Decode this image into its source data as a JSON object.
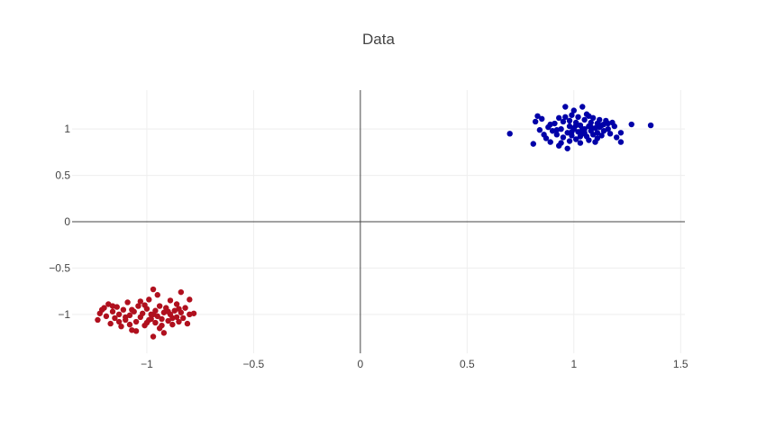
{
  "chart_data": {
    "type": "scatter",
    "title": "Data",
    "xlabel": "",
    "ylabel": "",
    "xlim": [
      -1.35,
      1.52
    ],
    "ylim": [
      -1.42,
      1.42
    ],
    "x_ticks": [
      -1,
      -0.5,
      0,
      0.5,
      1,
      1.5
    ],
    "x_tick_labels": [
      "−1",
      "−0.5",
      "0",
      "0.5",
      "1",
      "1.5"
    ],
    "y_ticks": [
      -1,
      -0.5,
      0,
      0.5,
      1
    ],
    "y_tick_labels": [
      "−1",
      "−0.5",
      "0",
      "0.5",
      "1"
    ],
    "grid": true,
    "zero_lines": true,
    "legend": "none",
    "series": [
      {
        "color": "#0000a8",
        "points": [
          [
            0.7,
            0.95
          ],
          [
            0.81,
            0.84
          ],
          [
            0.82,
            1.08
          ],
          [
            0.83,
            1.14
          ],
          [
            0.85,
            1.11
          ],
          [
            0.84,
            0.99
          ],
          [
            0.86,
            0.94
          ],
          [
            0.88,
            1.02
          ],
          [
            0.87,
            0.9
          ],
          [
            0.89,
            0.86
          ],
          [
            0.9,
            0.98
          ],
          [
            0.91,
            1.06
          ],
          [
            0.92,
            0.94
          ],
          [
            0.93,
            1.12
          ],
          [
            0.93,
            0.82
          ],
          [
            0.94,
            1.0
          ],
          [
            0.95,
            0.91
          ],
          [
            0.95,
            1.08
          ],
          [
            0.96,
            1.24
          ],
          [
            0.97,
            0.96
          ],
          [
            0.98,
            1.03
          ],
          [
            0.98,
            0.87
          ],
          [
            0.99,
            1.15
          ],
          [
            0.99,
            0.93
          ],
          [
            1.0,
            1.01
          ],
          [
            1.0,
            1.2
          ],
          [
            1.01,
            0.89
          ],
          [
            1.01,
            1.07
          ],
          [
            1.02,
            0.97
          ],
          [
            1.02,
            1.13
          ],
          [
            1.03,
            1.04
          ],
          [
            1.03,
            0.85
          ],
          [
            1.04,
            1.24
          ],
          [
            1.04,
            0.95
          ],
          [
            1.05,
            1.1
          ],
          [
            1.05,
            1.0
          ],
          [
            1.06,
            0.92
          ],
          [
            1.06,
            1.16
          ],
          [
            1.07,
            1.03
          ],
          [
            1.07,
            0.88
          ],
          [
            1.08,
            0.98
          ],
          [
            1.08,
            1.07
          ],
          [
            1.09,
            1.12
          ],
          [
            1.09,
            0.94
          ],
          [
            1.1,
            1.01
          ],
          [
            1.1,
            0.86
          ],
          [
            1.11,
            1.06
          ],
          [
            1.11,
            0.96
          ],
          [
            1.12,
            1.1
          ],
          [
            1.12,
            1.02
          ],
          [
            1.13,
            0.93
          ],
          [
            1.14,
            1.05
          ],
          [
            1.14,
            0.98
          ],
          [
            1.15,
            1.09
          ],
          [
            1.16,
            1.0
          ],
          [
            1.17,
            0.95
          ],
          [
            1.18,
            1.07
          ],
          [
            1.19,
            1.03
          ],
          [
            1.2,
            0.91
          ],
          [
            1.22,
            0.86
          ],
          [
            1.22,
            0.96
          ],
          [
            1.27,
            1.05
          ],
          [
            1.36,
            1.04
          ],
          [
            0.97,
            0.79
          ],
          [
            1.0,
            1.0
          ],
          [
            0.96,
            1.13
          ],
          [
            1.07,
            1.14
          ],
          [
            0.92,
            0.99
          ],
          [
            1.13,
            1.04
          ],
          [
            1.03,
            0.92
          ],
          [
            0.98,
            1.09
          ],
          [
            1.08,
            1.02
          ],
          [
            1.05,
            0.96
          ],
          [
            0.94,
            0.85
          ],
          [
            1.11,
            0.9
          ],
          [
            1.01,
            1.04
          ],
          [
            0.89,
            1.05
          ],
          [
            1.16,
            1.06
          ],
          [
            1.04,
            1.0
          ],
          [
            0.99,
            0.97
          ]
        ]
      },
      {
        "color": "#b0101e",
        "points": [
          [
            -1.23,
            -1.06
          ],
          [
            -1.22,
            -0.99
          ],
          [
            -1.2,
            -0.93
          ],
          [
            -1.19,
            -1.02
          ],
          [
            -1.18,
            -0.89
          ],
          [
            -1.17,
            -1.1
          ],
          [
            -1.16,
            -0.97
          ],
          [
            -1.15,
            -1.04
          ],
          [
            -1.14,
            -0.92
          ],
          [
            -1.13,
            -1.0
          ],
          [
            -1.12,
            -1.13
          ],
          [
            -1.11,
            -0.95
          ],
          [
            -1.1,
            -1.06
          ],
          [
            -1.09,
            -0.87
          ],
          [
            -1.08,
            -1.01
          ],
          [
            -1.07,
            -1.17
          ],
          [
            -1.06,
            -0.97
          ],
          [
            -1.05,
            -1.08
          ],
          [
            -1.04,
            -0.91
          ],
          [
            -1.03,
            -1.03
          ],
          [
            -1.02,
            -0.99
          ],
          [
            -1.01,
            -1.12
          ],
          [
            -1.0,
            -0.94
          ],
          [
            -0.99,
            -1.06
          ],
          [
            -0.99,
            -0.84
          ],
          [
            -0.98,
            -1.0
          ],
          [
            -0.97,
            -1.24
          ],
          [
            -0.97,
            -0.73
          ],
          [
            -0.96,
            -1.09
          ],
          [
            -0.96,
            -0.96
          ],
          [
            -0.95,
            -1.02
          ],
          [
            -0.94,
            -0.91
          ],
          [
            -0.94,
            -1.15
          ],
          [
            -0.93,
            -1.05
          ],
          [
            -0.92,
            -0.98
          ],
          [
            -0.92,
            -1.2
          ],
          [
            -0.91,
            -0.93
          ],
          [
            -0.9,
            -1.07
          ],
          [
            -0.89,
            -1.0
          ],
          [
            -0.89,
            -0.85
          ],
          [
            -0.88,
            -1.11
          ],
          [
            -0.87,
            -0.96
          ],
          [
            -0.86,
            -1.03
          ],
          [
            -0.86,
            -0.89
          ],
          [
            -0.85,
            -1.08
          ],
          [
            -0.84,
            -0.98
          ],
          [
            -0.84,
            -0.76
          ],
          [
            -0.83,
            -1.04
          ],
          [
            -0.82,
            -0.93
          ],
          [
            -0.81,
            -1.1
          ],
          [
            -0.8,
            -1.0
          ],
          [
            -0.8,
            -0.84
          ],
          [
            -0.78,
            -0.99
          ],
          [
            -1.21,
            -0.95
          ],
          [
            -1.05,
            -1.18
          ],
          [
            -0.95,
            -0.79
          ],
          [
            -1.1,
            -1.03
          ],
          [
            -0.98,
            -1.05
          ],
          [
            -1.01,
            -0.9
          ],
          [
            -0.93,
            -1.12
          ],
          [
            -1.07,
            -0.95
          ],
          [
            -0.9,
            -0.97
          ],
          [
            -1.13,
            -1.08
          ],
          [
            -1.03,
            -0.86
          ],
          [
            -0.88,
            -1.04
          ],
          [
            -0.97,
            -1.0
          ],
          [
            -1.16,
            -0.91
          ],
          [
            -0.85,
            -0.94
          ],
          [
            -1.0,
            -1.09
          ],
          [
            -1.08,
            -1.11
          ]
        ]
      }
    ]
  }
}
